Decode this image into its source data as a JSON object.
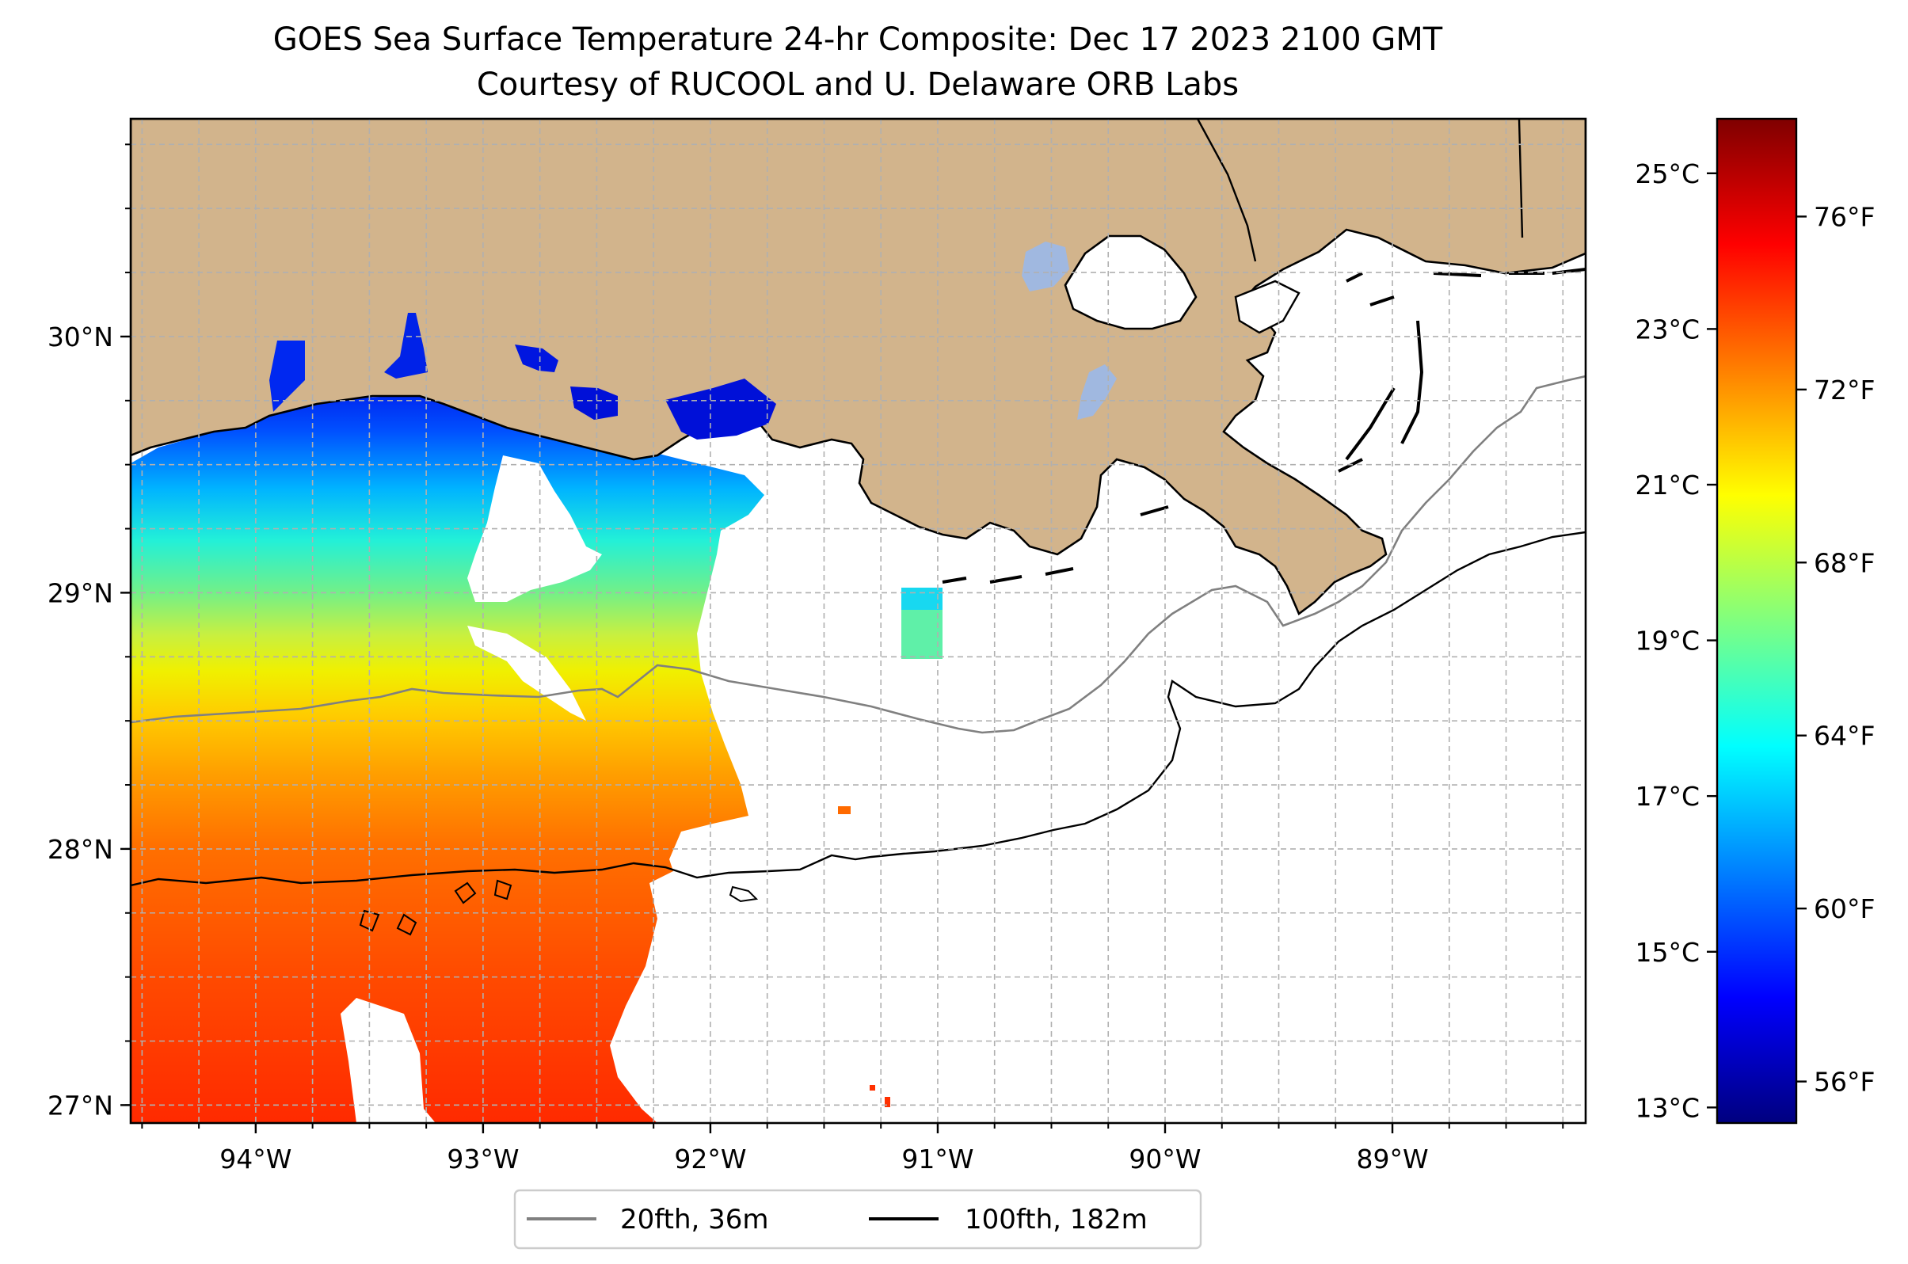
{
  "title": {
    "line1": "GOES Sea Surface Temperature 24-hr Composite: Dec 17 2023 2100 GMT",
    "line2": "Courtesy of RUCOOL and U. Delaware ORB Labs"
  },
  "map": {
    "lon_range": [
      -94.55,
      -88.15
    ],
    "lat_range": [
      26.93,
      30.85
    ],
    "lon_ticks": [
      {
        "value": -94,
        "label": "94°W"
      },
      {
        "value": -93,
        "label": "93°W"
      },
      {
        "value": -92,
        "label": "92°W"
      },
      {
        "value": -91,
        "label": "91°W"
      },
      {
        "value": -90,
        "label": "90°W"
      },
      {
        "value": -89,
        "label": "89°W"
      }
    ],
    "lat_ticks": [
      {
        "value": 27,
        "label": "27°N"
      },
      {
        "value": 28,
        "label": "28°N"
      },
      {
        "value": 29,
        "label": "29°N"
      },
      {
        "value": 30,
        "label": "30°N"
      }
    ],
    "gridlines": true,
    "land_color": "#d2b48c",
    "no_data_color": "#ffffff"
  },
  "colorbar": {
    "colormap": "jet",
    "range_c": [
      12.8,
      25.7
    ],
    "celsius_ticks": [
      {
        "value": 13,
        "label": "13°C"
      },
      {
        "value": 15,
        "label": "15°C"
      },
      {
        "value": 17,
        "label": "17°C"
      },
      {
        "value": 19,
        "label": "19°C"
      },
      {
        "value": 21,
        "label": "21°C"
      },
      {
        "value": 23,
        "label": "23°C"
      },
      {
        "value": 25,
        "label": "25°C"
      }
    ],
    "fahrenheit_ticks": [
      {
        "value": 56,
        "label": "56°F"
      },
      {
        "value": 60,
        "label": "60°F"
      },
      {
        "value": 64,
        "label": "64°F"
      },
      {
        "value": 68,
        "label": "68°F"
      },
      {
        "value": 72,
        "label": "72°F"
      },
      {
        "value": 76,
        "label": "76°F"
      }
    ]
  },
  "legend": {
    "placement": "lower-center",
    "items": [
      {
        "label": "20fth, 36m",
        "color": "#808080"
      },
      {
        "label": "100fth, 182m",
        "color": "#000000"
      }
    ]
  }
}
